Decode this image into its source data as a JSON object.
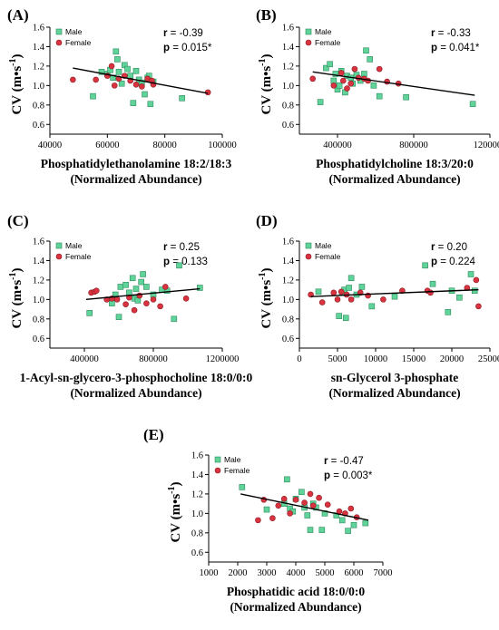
{
  "colors": {
    "male": "#5fd39a",
    "female": "#d9333f",
    "male_edge": "#2f8a5c",
    "female_edge": "#8a1a22"
  },
  "chart_data": [
    {
      "type": "scatter",
      "panel_label": "(A)",
      "ylabel": "CV (m•s",
      "ylabel_sup": "-1",
      "ylabel_close": ")",
      "xlabel": [
        "Phosphatidylethanolamine 18:2/18:3",
        "(Normalized Abundance)"
      ],
      "xlim": [
        40000,
        100000
      ],
      "xticks": [
        40000,
        60000,
        80000,
        100000
      ],
      "ylim": [
        0.5,
        1.6
      ],
      "yticks": [
        0.6,
        0.8,
        1.0,
        1.2,
        1.4,
        1.6
      ],
      "ytick_labels": [
        "0.6",
        "0.8",
        "1.0",
        "1.2",
        "1.4",
        "1.6"
      ],
      "legend": [
        "Male",
        "Female"
      ],
      "r_label": "r",
      "r_value": "= -0.39",
      "p_label": "p",
      "p_value": "= 0.015*",
      "fit": {
        "x": [
          48000,
          95000
        ],
        "y": [
          1.18,
          0.92
        ]
      },
      "series": [
        {
          "name": "Male",
          "points": [
            [
              55000,
              0.89
            ],
            [
              58000,
              1.14
            ],
            [
              60000,
              1.12
            ],
            [
              61000,
              1.16
            ],
            [
              62000,
              1.08
            ],
            [
              63000,
              1.35
            ],
            [
              63500,
              1.27
            ],
            [
              64000,
              1.14
            ],
            [
              65000,
              1.02
            ],
            [
              66000,
              1.21
            ],
            [
              67000,
              1.17
            ],
            [
              68000,
              1.1
            ],
            [
              69000,
              0.82
            ],
            [
              70000,
              1.15
            ],
            [
              71000,
              1.06
            ],
            [
              72000,
              1.03
            ],
            [
              73000,
              0.91
            ],
            [
              74000,
              1.08
            ],
            [
              74500,
              1.1
            ],
            [
              75000,
              0.81
            ],
            [
              76000,
              1.04
            ],
            [
              86000,
              0.87
            ]
          ]
        },
        {
          "name": "Female",
          "points": [
            [
              48000,
              1.06
            ],
            [
              56000,
              1.06
            ],
            [
              60000,
              1.1
            ],
            [
              61500,
              1.2
            ],
            [
              62500,
              1.0
            ],
            [
              64000,
              1.07
            ],
            [
              66000,
              1.1
            ],
            [
              68000,
              1.05
            ],
            [
              70000,
              1.01
            ],
            [
              72000,
              0.99
            ],
            [
              74000,
              1.07
            ],
            [
              75500,
              1.05
            ],
            [
              76000,
              1.01
            ],
            [
              95000,
              0.93
            ]
          ]
        }
      ]
    },
    {
      "type": "scatter",
      "panel_label": "(B)",
      "ylabel": "CV (m•s",
      "ylabel_sup": "-1",
      "ylabel_close": ")",
      "xlabel": [
        "Phosphatidylcholine 18:3/20:0",
        "(Normalized Abundance)"
      ],
      "xlim": [
        200000,
        1200000
      ],
      "xticks": [
        400000,
        800000,
        1200000
      ],
      "ylim": [
        0.5,
        1.6
      ],
      "yticks": [
        0.6,
        0.8,
        1.0,
        1.2,
        1.4,
        1.6
      ],
      "ytick_labels": [
        "0.6",
        "0.8",
        "1.0",
        "1.2",
        "1.4",
        "1.6"
      ],
      "legend": [
        "Male",
        "Female"
      ],
      "r_label": "r",
      "r_value": "= -0.33",
      "p_label": "p",
      "p_value": "= 0.041*",
      "fit": {
        "x": [
          270000,
          1120000
        ],
        "y": [
          1.14,
          0.9
        ]
      },
      "series": [
        {
          "name": "Male",
          "points": [
            [
              310000,
              0.83
            ],
            [
              340000,
              1.18
            ],
            [
              360000,
              1.22
            ],
            [
              380000,
              1.05
            ],
            [
              390000,
              1.12
            ],
            [
              400000,
              0.96
            ],
            [
              410000,
              1.0
            ],
            [
              420000,
              1.15
            ],
            [
              440000,
              0.93
            ],
            [
              450000,
              1.1
            ],
            [
              470000,
              1.08
            ],
            [
              480000,
              1.02
            ],
            [
              500000,
              1.11
            ],
            [
              520000,
              1.05
            ],
            [
              540000,
              1.12
            ],
            [
              550000,
              1.36
            ],
            [
              570000,
              1.27
            ],
            [
              590000,
              1.0
            ],
            [
              620000,
              0.89
            ],
            [
              760000,
              0.88
            ],
            [
              1110000,
              0.81
            ]
          ]
        },
        {
          "name": "Female",
          "points": [
            [
              270000,
              1.07
            ],
            [
              380000,
              1.0
            ],
            [
              420000,
              1.13
            ],
            [
              430000,
              1.05
            ],
            [
              450000,
              0.97
            ],
            [
              470000,
              1.02
            ],
            [
              490000,
              1.17
            ],
            [
              510000,
              1.08
            ],
            [
              540000,
              1.07
            ],
            [
              560000,
              1.05
            ],
            [
              620000,
              1.17
            ],
            [
              660000,
              1.04
            ],
            [
              720000,
              1.02
            ]
          ]
        }
      ]
    },
    {
      "type": "scatter",
      "panel_label": "(C)",
      "ylabel": "CV (m•s",
      "ylabel_sup": "-1",
      "ylabel_close": ")",
      "xlabel": [
        "1-Acyl-sn-glycero-3-phosphocholine 18:0/0:0",
        "(Normalized Abundance)"
      ],
      "xlim": [
        200000,
        1200000
      ],
      "xticks": [
        400000,
        800000,
        1200000
      ],
      "ylim": [
        0.5,
        1.6
      ],
      "yticks": [
        0.6,
        0.8,
        1.0,
        1.2,
        1.4,
        1.6
      ],
      "ytick_labels": [
        "0.6",
        "0.8",
        "1.0",
        "1.2",
        "1.4",
        "1.6"
      ],
      "legend": [
        "Male",
        "Female"
      ],
      "r_label": "r",
      "r_value": "= 0.25",
      "p_label": "p",
      "p_value": "= 0.133",
      "fit": {
        "x": [
          410000,
          1070000
        ],
        "y": [
          1.0,
          1.11
        ]
      },
      "series": [
        {
          "name": "Male",
          "points": [
            [
              430000,
              0.86
            ],
            [
              560000,
              0.96
            ],
            [
              580000,
              1.05
            ],
            [
              600000,
              0.82
            ],
            [
              610000,
              1.13
            ],
            [
              640000,
              1.15
            ],
            [
              660000,
              1.07
            ],
            [
              680000,
              1.22
            ],
            [
              690000,
              1.01
            ],
            [
              700000,
              1.11
            ],
            [
              710000,
              0.99
            ],
            [
              730000,
              1.18
            ],
            [
              740000,
              1.26
            ],
            [
              760000,
              1.13
            ],
            [
              800000,
              1.05
            ],
            [
              850000,
              1.1
            ],
            [
              880000,
              1.09
            ],
            [
              920000,
              0.8
            ],
            [
              950000,
              1.35
            ],
            [
              1070000,
              1.12
            ]
          ]
        },
        {
          "name": "Female",
          "points": [
            [
              440000,
              1.07
            ],
            [
              460000,
              1.08
            ],
            [
              470000,
              1.09
            ],
            [
              530000,
              1.0
            ],
            [
              560000,
              1.01
            ],
            [
              590000,
              1.0
            ],
            [
              640000,
              0.95
            ],
            [
              660000,
              1.02
            ],
            [
              690000,
              0.89
            ],
            [
              720000,
              1.04
            ],
            [
              760000,
              0.96
            ],
            [
              800000,
              1.0
            ],
            [
              840000,
              0.93
            ],
            [
              870000,
              1.13
            ],
            [
              990000,
              1.01
            ]
          ]
        }
      ]
    },
    {
      "type": "scatter",
      "panel_label": "(D)",
      "ylabel": "CV (m•s",
      "ylabel_sup": "-1",
      "ylabel_close": ")",
      "xlabel": [
        "sn-Glycerol 3-phosphate",
        "(Normalized Abundance)"
      ],
      "xlim": [
        0,
        25000
      ],
      "xticks": [
        0,
        5000,
        10000,
        15000,
        20000,
        25000
      ],
      "ylim": [
        0.5,
        1.6
      ],
      "yticks": [
        0.6,
        0.8,
        1.0,
        1.2,
        1.4,
        1.6
      ],
      "ytick_labels": [
        "0.6",
        "0.8",
        "1.0",
        "1.2",
        "1.4",
        "1.6"
      ],
      "legend": [
        "Male",
        "Female"
      ],
      "r_label": "r",
      "r_value": "= 0.20",
      "p_label": "p",
      "p_value": "= 0.224",
      "fit": {
        "x": [
          1500,
          23500
        ],
        "y": [
          1.03,
          1.1
        ]
      },
      "series": [
        {
          "name": "Male",
          "points": [
            [
              2500,
              1.08
            ],
            [
              5200,
              0.83
            ],
            [
              5600,
              1.07
            ],
            [
              5900,
              1.1
            ],
            [
              6100,
              0.81
            ],
            [
              6500,
              1.12
            ],
            [
              6800,
              1.22
            ],
            [
              7500,
              1.05
            ],
            [
              8200,
              1.13
            ],
            [
              9500,
              0.93
            ],
            [
              12500,
              1.03
            ],
            [
              16500,
              1.35
            ],
            [
              17500,
              1.16
            ],
            [
              19500,
              0.87
            ],
            [
              20000,
              1.09
            ],
            [
              21000,
              1.02
            ],
            [
              22500,
              1.26
            ],
            [
              23000,
              1.09
            ]
          ]
        },
        {
          "name": "Female",
          "points": [
            [
              1500,
              1.05
            ],
            [
              3000,
              0.97
            ],
            [
              4500,
              1.07
            ],
            [
              5000,
              1.0
            ],
            [
              5500,
              1.08
            ],
            [
              6200,
              1.05
            ],
            [
              6800,
              1.0
            ],
            [
              8000,
              1.07
            ],
            [
              9000,
              1.04
            ],
            [
              11000,
              1.0
            ],
            [
              13500,
              1.09
            ],
            [
              16800,
              1.09
            ],
            [
              17200,
              1.07
            ],
            [
              22000,
              1.12
            ],
            [
              23200,
              1.2
            ],
            [
              23500,
              0.93
            ]
          ]
        }
      ]
    },
    {
      "type": "scatter",
      "panel_label": "(E)",
      "ylabel": "CV (m•s",
      "ylabel_sup": "-1",
      "ylabel_close": ")",
      "xlabel": [
        "Phosphatidic acid 18:0/0:0",
        "(Normalized Abundance)"
      ],
      "xlim": [
        1000,
        7000
      ],
      "xticks": [
        1000,
        2000,
        3000,
        4000,
        5000,
        6000,
        7000
      ],
      "ylim": [
        0.5,
        1.6
      ],
      "yticks": [
        0.6,
        0.8,
        1.0,
        1.2,
        1.4,
        1.6
      ],
      "ytick_labels": [
        "0.6",
        "0.8",
        "1.0",
        "1.2",
        "1.4",
        "1.6"
      ],
      "legend": [
        "Male",
        "Female"
      ],
      "r_label": "r",
      "r_value": "= -0.47",
      "p_label": "p",
      "p_value": "= 0.003*",
      "fit": {
        "x": [
          2100,
          6500
        ],
        "y": [
          1.2,
          0.93
        ]
      },
      "series": [
        {
          "name": "Male",
          "points": [
            [
              2150,
              1.27
            ],
            [
              3000,
              1.04
            ],
            [
              3600,
              1.1
            ],
            [
              3700,
              1.35
            ],
            [
              3800,
              1.05
            ],
            [
              3900,
              1.02
            ],
            [
              4000,
              1.15
            ],
            [
              4200,
              1.22
            ],
            [
              4300,
              1.06
            ],
            [
              4400,
              0.98
            ],
            [
              4500,
              0.83
            ],
            [
              4600,
              1.1
            ],
            [
              4700,
              1.06
            ],
            [
              4900,
              0.83
            ],
            [
              5000,
              1.0
            ],
            [
              5400,
              0.98
            ],
            [
              5600,
              0.93
            ],
            [
              5800,
              0.82
            ],
            [
              6000,
              0.88
            ],
            [
              6400,
              0.9
            ]
          ]
        },
        {
          "name": "Female",
          "points": [
            [
              2700,
              0.93
            ],
            [
              2900,
              1.14
            ],
            [
              3200,
              0.95
            ],
            [
              3400,
              1.08
            ],
            [
              3600,
              1.15
            ],
            [
              3800,
              1.0
            ],
            [
              4000,
              1.14
            ],
            [
              4300,
              1.11
            ],
            [
              4500,
              1.2
            ],
            [
              4600,
              1.08
            ],
            [
              4800,
              1.16
            ],
            [
              5100,
              1.09
            ],
            [
              5500,
              1.02
            ],
            [
              5700,
              1.0
            ],
            [
              5900,
              1.05
            ],
            [
              6100,
              0.96
            ]
          ]
        }
      ]
    }
  ]
}
